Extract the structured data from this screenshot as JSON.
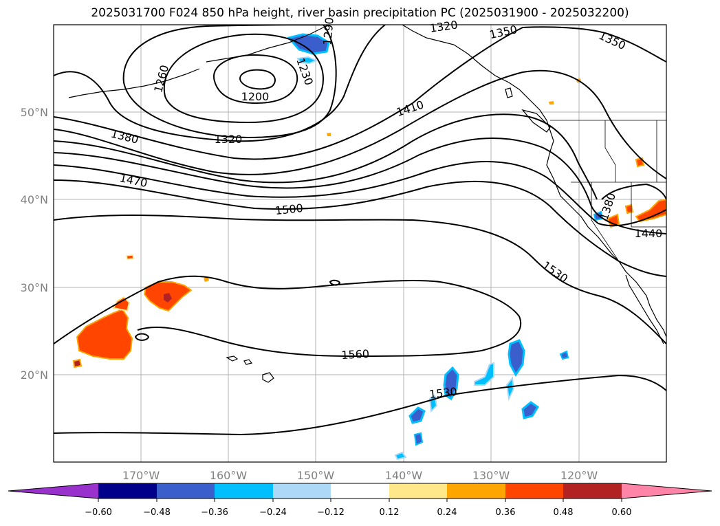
{
  "title": "2025031700 F024 850 hPa height, river basin precipitation PC (2025031900 - 2025032200)",
  "map": {
    "projection": "PlateCarree",
    "lon_labels": [
      "170°W",
      "160°W",
      "150°W",
      "140°W",
      "130°W",
      "120°W"
    ],
    "lat_labels": [
      "50°N",
      "40°N",
      "30°N",
      "20°N"
    ],
    "contour_labels": [
      {
        "text": "1350",
        "feature": "contour-label-1350-a"
      },
      {
        "text": "1350",
        "feature": "contour-label-1350-b"
      },
      {
        "text": "1260",
        "feature": "contour-label-1260"
      },
      {
        "text": "1230",
        "feature": "contour-label-1230"
      },
      {
        "text": "1290",
        "feature": "contour-label-1290"
      },
      {
        "text": "1200",
        "feature": "contour-label-1200"
      },
      {
        "text": "1320",
        "feature": "contour-label-1320"
      },
      {
        "text": "1410",
        "feature": "contour-label-1410"
      },
      {
        "text": "1380",
        "feature": "contour-label-1380-a"
      },
      {
        "text": "1380",
        "feature": "contour-label-1380-b"
      },
      {
        "text": "1470",
        "feature": "contour-label-1470"
      },
      {
        "text": "1500",
        "feature": "contour-label-1500"
      },
      {
        "text": "1440",
        "feature": "contour-label-1440"
      },
      {
        "text": "1530",
        "feature": "contour-label-1530-a"
      },
      {
        "text": "1530",
        "feature": "contour-label-1530-b"
      },
      {
        "text": "1560",
        "feature": "contour-label-1560"
      },
      {
        "text": "1320",
        "feature": "contour-label-1320-top"
      }
    ]
  },
  "colorbar": {
    "ticks": [
      "−0.60",
      "−0.48",
      "−0.36",
      "−0.24",
      "−0.12",
      "0.12",
      "0.24",
      "0.36",
      "0.48",
      "0.60"
    ],
    "colors": [
      "#9932cc",
      "#00008b",
      "#3a5fcd",
      "#00bfff",
      "#add8f7",
      "#ffffff",
      "#ffe88a",
      "#ffa500",
      "#ff4500",
      "#b22222",
      "#ff85a8"
    ],
    "extend": "both"
  }
}
